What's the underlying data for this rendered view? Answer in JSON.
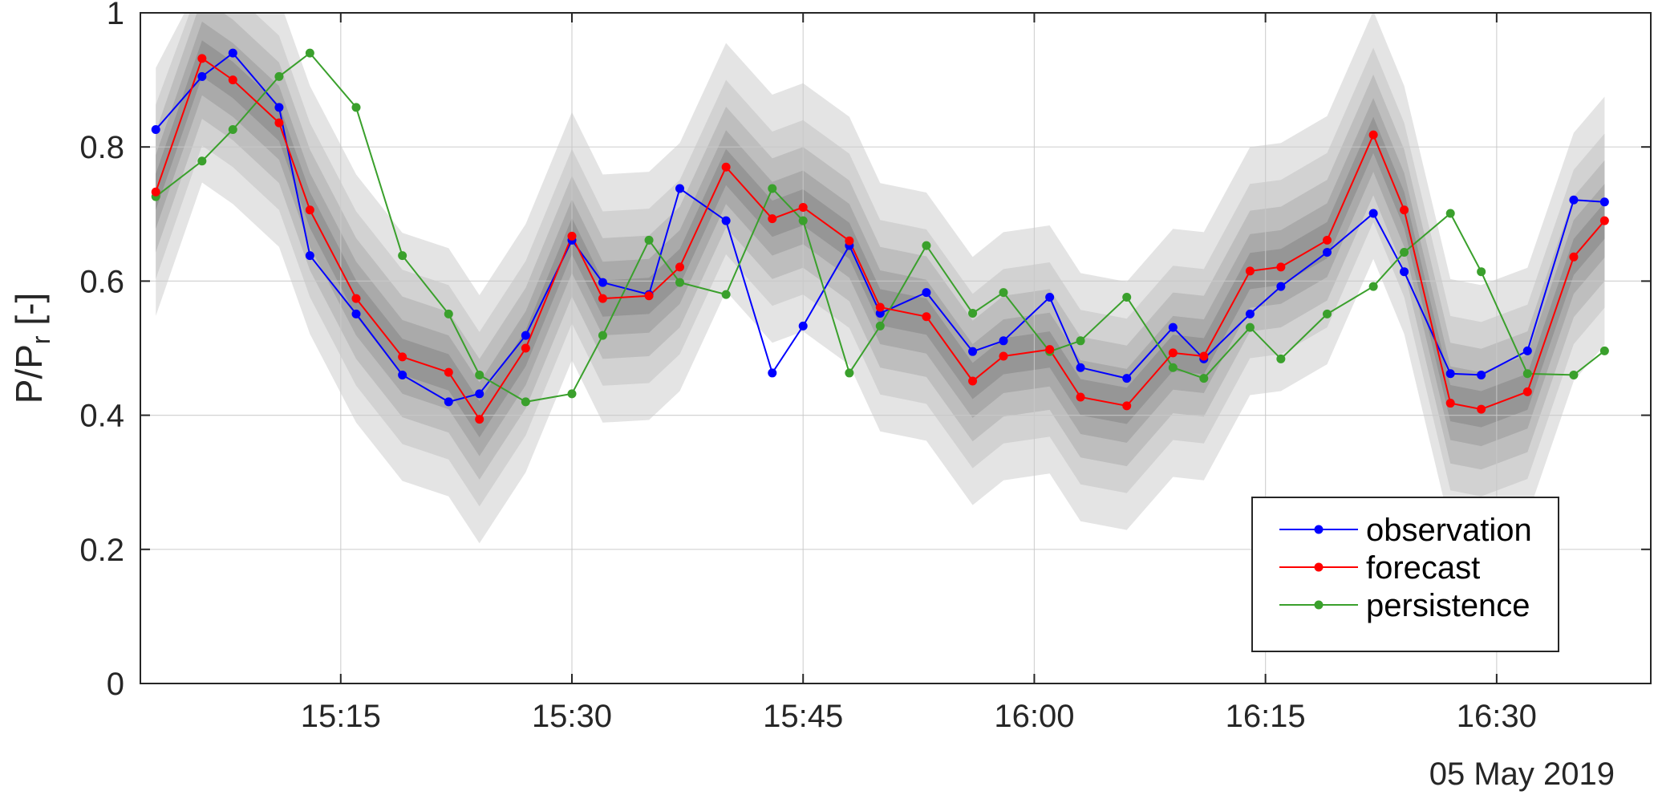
{
  "chart_data": {
    "type": "line",
    "title": "",
    "ylabel_main": "P/P",
    "ylabel_sub": "r",
    "ylabel_suffix": " [-]",
    "xlabel": "",
    "date_label": "05 May 2019",
    "ylim": [
      0,
      1
    ],
    "xlim": [
      "15:02",
      "16:40"
    ],
    "grid": true,
    "legend_position": "bottom-right",
    "y_ticks": [
      0,
      0.2,
      0.4,
      0.6,
      0.8,
      1
    ],
    "y_tick_labels": [
      "0",
      "0.2",
      "0.4",
      "0.6",
      "0.8",
      "1"
    ],
    "x_ticks": [
      "15:15",
      "15:30",
      "15:45",
      "16:00",
      "16:15",
      "16:30"
    ],
    "x": [
      "15:03",
      "15:06",
      "15:08",
      "15:11",
      "15:13",
      "15:16",
      "15:19",
      "15:22",
      "15:24",
      "15:27",
      "15:30",
      "15:32",
      "15:35",
      "15:37",
      "15:40",
      "15:43",
      "15:45",
      "15:48",
      "15:50",
      "15:53",
      "15:56",
      "15:58",
      "16:01",
      "16:03",
      "16:06",
      "16:09",
      "16:11",
      "16:14",
      "16:16",
      "16:19",
      "16:22",
      "16:24",
      "16:27",
      "16:29",
      "16:32",
      "16:35",
      "16:37"
    ],
    "series": [
      {
        "name": "observation",
        "color": "#0000ff",
        "values": [
          0.826,
          0.905,
          0.94,
          0.859,
          0.638,
          0.551,
          0.46,
          0.42,
          0.432,
          0.519,
          0.661,
          0.598,
          0.58,
          0.738,
          0.69,
          0.463,
          0.533,
          0.653,
          0.552,
          0.583,
          0.495,
          0.511,
          0.576,
          0.471,
          0.455,
          0.531,
          0.484,
          0.551,
          0.592,
          0.643,
          0.701,
          0.614,
          0.462,
          0.46,
          0.496,
          0.721,
          0.718
        ]
      },
      {
        "name": "forecast",
        "color": "#ff0000",
        "values": [
          0.733,
          0.932,
          0.9,
          0.836,
          0.706,
          0.574,
          0.487,
          0.464,
          0.394,
          0.5,
          0.667,
          0.574,
          0.578,
          0.621,
          0.77,
          0.693,
          0.71,
          0.66,
          0.561,
          0.547,
          0.451,
          0.488,
          0.498,
          0.427,
          0.414,
          0.493,
          0.488,
          0.615,
          0.621,
          0.661,
          0.818,
          0.706,
          0.418,
          0.409,
          0.435,
          0.636,
          0.69
        ]
      },
      {
        "name": "persistence",
        "color": "#3aa02c",
        "values": [
          0.726,
          0.779,
          0.826,
          0.905,
          0.94,
          0.859,
          0.638,
          0.551,
          0.46,
          0.42,
          0.432,
          0.519,
          0.661,
          0.598,
          0.58,
          0.738,
          0.69,
          0.463,
          0.533,
          0.653,
          0.552,
          0.583,
          0.495,
          0.511,
          0.576,
          0.471,
          0.455,
          0.531,
          0.484,
          0.551,
          0.592,
          0.643,
          0.701,
          0.614,
          0.462,
          0.46,
          0.496
        ]
      }
    ],
    "uncertainty_bands": {
      "colors": [
        "#e4e4e4",
        "#d2d2d2",
        "#bebebe",
        "#aaaaaa",
        "#969696"
      ],
      "half_widths": [
        0.185,
        0.13,
        0.09,
        0.055,
        0.027
      ]
    }
  }
}
